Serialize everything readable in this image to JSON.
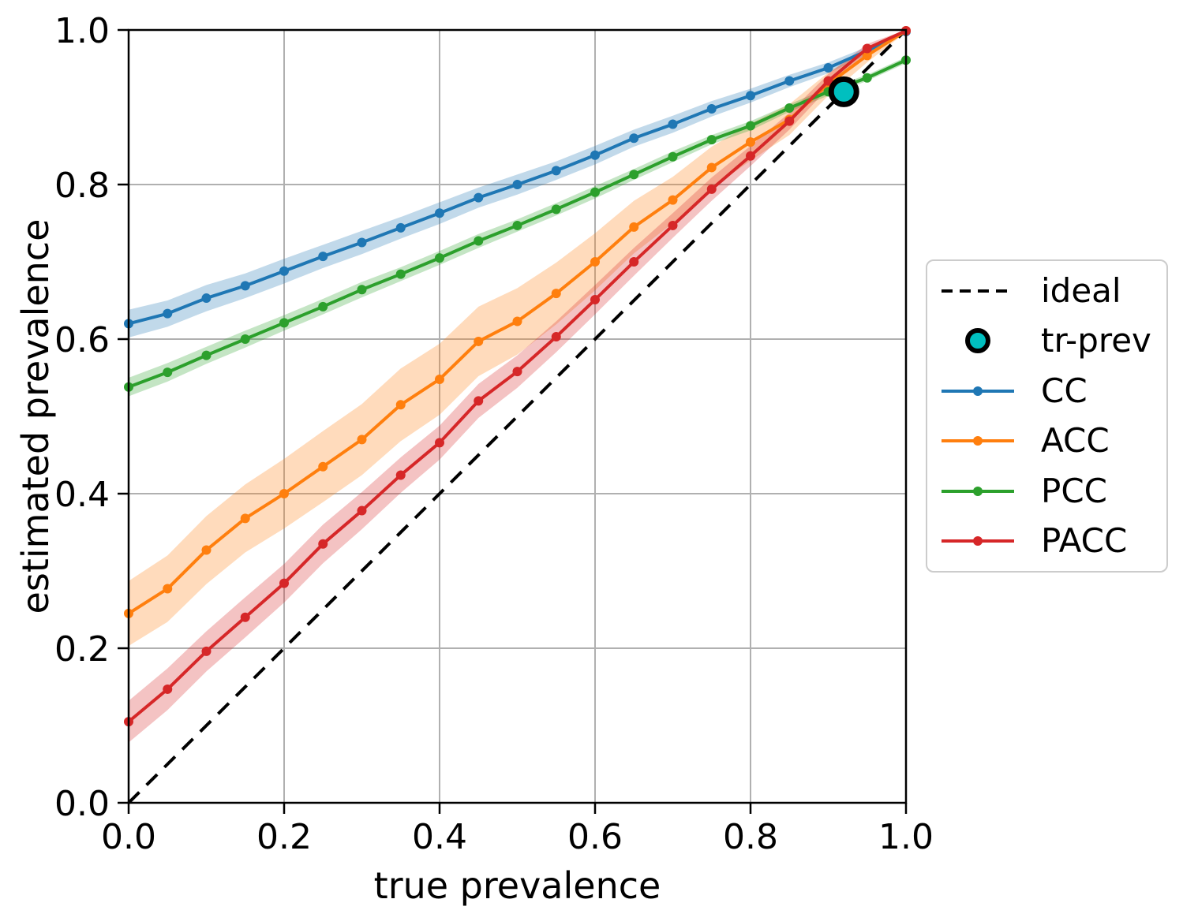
{
  "chart_data": {
    "type": "line",
    "title": "",
    "xlabel": "true prevalence",
    "ylabel": "estimated prevalence",
    "xlim": [
      0.0,
      1.0
    ],
    "ylim": [
      0.0,
      1.0
    ],
    "x_ticks": [
      "0.0",
      "0.2",
      "0.4",
      "0.6",
      "0.8",
      "1.0"
    ],
    "y_ticks": [
      "0.0",
      "0.2",
      "0.4",
      "0.6",
      "0.8",
      "1.0"
    ],
    "grid": true,
    "grid_color": "#b0b0b0",
    "spine_color": "#000000",
    "background_color": "#ffffff",
    "legend_position": "right-outside",
    "legend_order": [
      "ideal",
      "tr-prev",
      "CC",
      "ACC",
      "PCC",
      "PACC"
    ],
    "x": [
      0.0,
      0.05,
      0.1,
      0.15,
      0.2,
      0.25,
      0.3,
      0.35,
      0.4,
      0.45,
      0.5,
      0.55,
      0.6,
      0.65,
      0.7,
      0.75,
      0.8,
      0.85,
      0.9,
      0.95,
      1.0
    ],
    "ideal": {
      "label": "ideal",
      "style": "dashed",
      "color": "#000000",
      "points": [
        [
          0.0,
          0.0
        ],
        [
          1.0,
          1.0
        ]
      ]
    },
    "tr_prev": {
      "label": "tr-prev",
      "x": 0.92,
      "y": 0.92,
      "fill": "#00bfbf",
      "edge": "#000000"
    },
    "series": [
      {
        "name": "CC",
        "color": "#1f77b4",
        "values": [
          0.62,
          0.633,
          0.653,
          0.669,
          0.688,
          0.707,
          0.725,
          0.744,
          0.763,
          0.783,
          0.8,
          0.818,
          0.838,
          0.86,
          0.878,
          0.898,
          0.915,
          0.934,
          0.951,
          0.973,
          0.998
        ],
        "band_halfwidth": [
          0.018,
          0.017,
          0.017,
          0.016,
          0.016,
          0.015,
          0.015,
          0.014,
          0.014,
          0.013,
          0.013,
          0.012,
          0.012,
          0.011,
          0.011,
          0.01,
          0.009,
          0.008,
          0.007,
          0.005,
          0.002
        ]
      },
      {
        "name": "ACC",
        "color": "#ff7f0e",
        "values": [
          0.245,
          0.277,
          0.327,
          0.368,
          0.4,
          0.435,
          0.47,
          0.515,
          0.548,
          0.597,
          0.623,
          0.659,
          0.7,
          0.745,
          0.78,
          0.822,
          0.855,
          0.884,
          0.93,
          0.967,
          0.999
        ],
        "band_halfwidth": [
          0.042,
          0.043,
          0.044,
          0.044,
          0.045,
          0.046,
          0.046,
          0.047,
          0.046,
          0.045,
          0.043,
          0.04,
          0.037,
          0.034,
          0.03,
          0.027,
          0.024,
          0.02,
          0.015,
          0.009,
          0.002
        ]
      },
      {
        "name": "PCC",
        "color": "#2ca02c",
        "values": [
          0.538,
          0.557,
          0.579,
          0.6,
          0.621,
          0.642,
          0.664,
          0.684,
          0.705,
          0.727,
          0.747,
          0.768,
          0.79,
          0.813,
          0.836,
          0.858,
          0.876,
          0.899,
          0.92,
          0.938,
          0.961
        ],
        "band_halfwidth": [
          0.012,
          0.012,
          0.011,
          0.011,
          0.01,
          0.01,
          0.01,
          0.009,
          0.009,
          0.009,
          0.008,
          0.008,
          0.008,
          0.007,
          0.007,
          0.006,
          0.006,
          0.005,
          0.005,
          0.004,
          0.004
        ]
      },
      {
        "name": "PACC",
        "color": "#d62728",
        "values": [
          0.105,
          0.147,
          0.196,
          0.24,
          0.284,
          0.335,
          0.378,
          0.424,
          0.466,
          0.52,
          0.558,
          0.603,
          0.651,
          0.7,
          0.747,
          0.794,
          0.837,
          0.882,
          0.934,
          0.976,
          0.999
        ],
        "band_halfwidth": [
          0.027,
          0.027,
          0.026,
          0.026,
          0.025,
          0.025,
          0.024,
          0.023,
          0.022,
          0.022,
          0.021,
          0.02,
          0.019,
          0.018,
          0.016,
          0.015,
          0.013,
          0.011,
          0.009,
          0.006,
          0.002
        ]
      }
    ],
    "band_opacity": 0.28
  }
}
